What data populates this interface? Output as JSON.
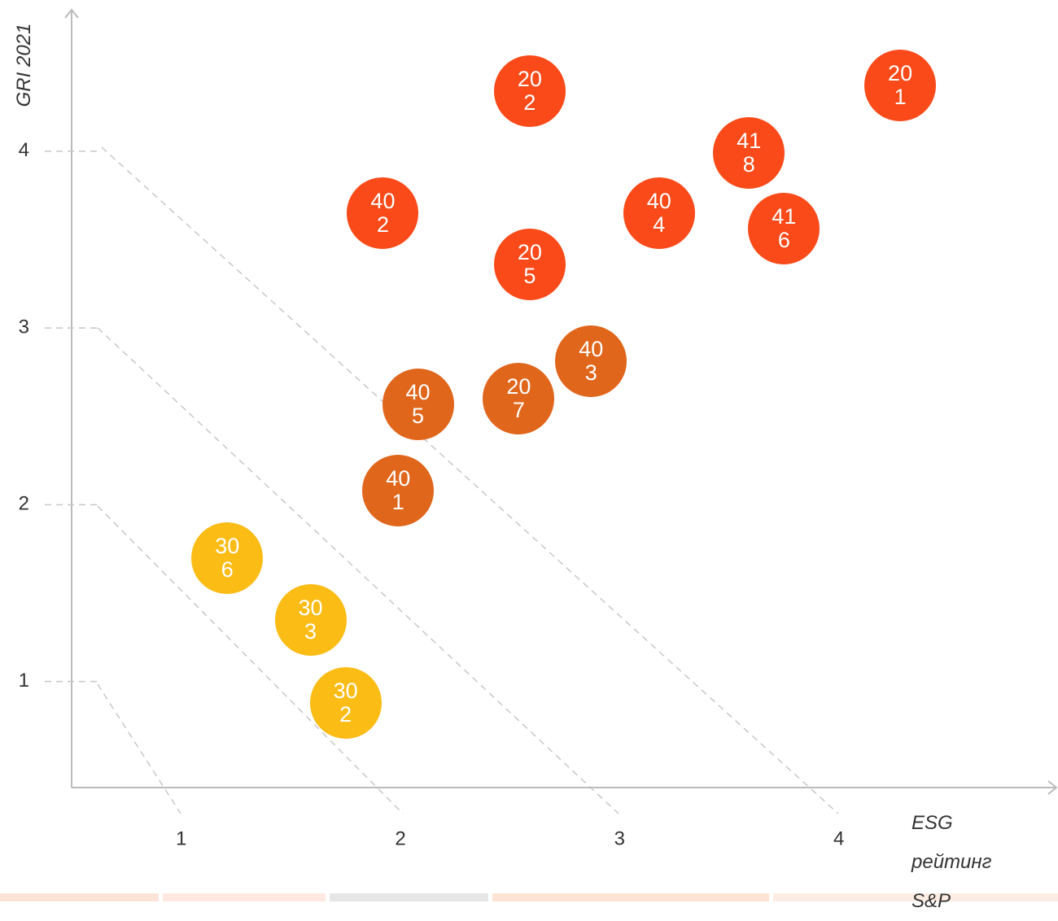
{
  "chart_data": {
    "type": "scatter",
    "x_label": "ESG рейтинг S&P",
    "y_label": "GRI 2021",
    "xlim": [
      0.5,
      5
    ],
    "xticks": [
      1,
      2,
      3,
      4
    ],
    "ylim": [
      0.4,
      4.8
    ],
    "yticks": [
      1,
      2,
      3,
      4
    ],
    "points": [
      {
        "label": "201",
        "x": 4.28,
        "y": 4.37,
        "color": "#fa4a19"
      },
      {
        "label": "202",
        "x": 2.59,
        "y": 4.34,
        "color": "#fa4a19"
      },
      {
        "label": "418",
        "x": 3.59,
        "y": 3.99,
        "color": "#fa4a19"
      },
      {
        "label": "402",
        "x": 1.92,
        "y": 3.65,
        "color": "#fa4a19"
      },
      {
        "label": "404",
        "x": 3.18,
        "y": 3.65,
        "color": "#fa4a19"
      },
      {
        "label": "416",
        "x": 3.75,
        "y": 3.56,
        "color": "#fa4a19"
      },
      {
        "label": "205",
        "x": 2.59,
        "y": 3.36,
        "color": "#fa4a19"
      },
      {
        "label": "403",
        "x": 2.87,
        "y": 2.81,
        "color": "#e0661b"
      },
      {
        "label": "405",
        "x": 2.08,
        "y": 2.57,
        "color": "#e0661b"
      },
      {
        "label": "207",
        "x": 2.54,
        "y": 2.6,
        "color": "#e0661b"
      },
      {
        "label": "401",
        "x": 1.99,
        "y": 2.08,
        "color": "#e0661b"
      },
      {
        "label": "306",
        "x": 1.21,
        "y": 1.7,
        "color": "#fbbc16"
      },
      {
        "label": "303",
        "x": 1.59,
        "y": 1.35,
        "color": "#fbbc16"
      },
      {
        "label": "302",
        "x": 1.75,
        "y": 0.88,
        "color": "#fbbc16"
      }
    ]
  }
}
